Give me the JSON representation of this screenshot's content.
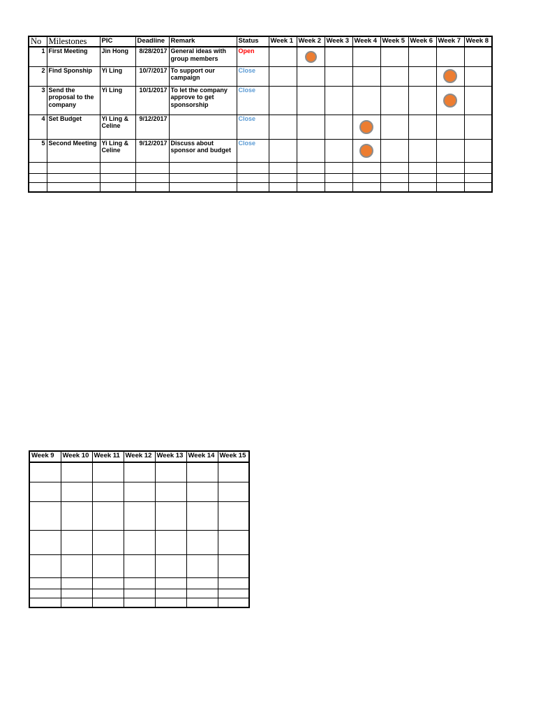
{
  "colors": {
    "page_bg": "#ffffff",
    "line": "#000000",
    "status_open": "#ff0000",
    "status_close": "#5b9bd5",
    "marker_fill": "#ed7d31",
    "marker_border": "#8c8c8c"
  },
  "milestones_table": {
    "headers": {
      "no": "No",
      "milestones": "Milestones",
      "pic": "PIC",
      "deadline": "Deadline",
      "remark": "Remark",
      "status": "Status"
    },
    "week_headers": [
      "Week 1",
      "Week 2",
      "Week 3",
      "Week 4",
      "Week 5",
      "Week 6",
      "Week 7",
      "Week 8"
    ],
    "rows": [
      {
        "no": "1",
        "milestone": "First Meeting",
        "pic": "Jin Hong",
        "deadline": "8/28/2017",
        "remark": "General ideas with group members",
        "status": "Open",
        "status_style": "open",
        "marker_week": 2
      },
      {
        "no": "2",
        "milestone": "Find Sponship",
        "pic": "Yi Ling",
        "deadline": "10/7/2017",
        "remark": "To support our campaign",
        "status": "Close",
        "status_style": "close",
        "marker_week": 7
      },
      {
        "no": "3",
        "milestone": "Send the proposal to the company",
        "pic": "Yi Ling",
        "deadline": "10/1/2017",
        "remark": "To let the company approve to get sponsorship",
        "status": "Close",
        "status_style": "close",
        "marker_week": 7
      },
      {
        "no": "4",
        "milestone": "Set Budget",
        "pic": "Yi Ling & Celine",
        "deadline": "9/12/2017",
        "remark": "",
        "status": "Close",
        "status_style": "close",
        "marker_week": 4
      },
      {
        "no": "5",
        "milestone": "Second Meeting",
        "pic": "Yi Ling & Celine",
        "deadline": "9/12/2017",
        "remark": "Discuss about sponsor and budget",
        "status": "Close",
        "status_style": "close",
        "marker_week": 4
      }
    ],
    "empty_row_count": 3
  },
  "week_continuation_table": {
    "week_headers": [
      "Week 9",
      "Week 10",
      "Week 11",
      "Week 12",
      "Week 13",
      "Week 14",
      "Week 15"
    ],
    "empty_row_count": 8
  }
}
